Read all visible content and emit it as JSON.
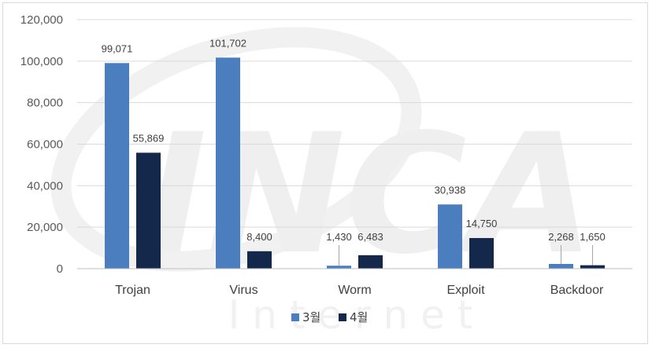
{
  "chart_data": {
    "type": "bar",
    "title": "",
    "xlabel": "",
    "ylabel": "",
    "ylim": [
      0,
      120000
    ],
    "yticks": [
      "0",
      "20,000",
      "40,000",
      "60,000",
      "80,000",
      "100,000",
      "120,000"
    ],
    "ytick_values": [
      0,
      20000,
      40000,
      60000,
      80000,
      100000,
      120000
    ],
    "grid": true,
    "legend_position": "bottom",
    "categories": [
      "Trojan",
      "Virus",
      "Worm",
      "Exploit",
      "Backdoor"
    ],
    "series": [
      {
        "name": "3월",
        "color": "#4a7ebf",
        "values": [
          99071,
          101702,
          1430,
          30938,
          2268
        ],
        "labels": [
          "99,071",
          "101,702",
          "1,430",
          "30,938",
          "2,268"
        ]
      },
      {
        "name": "4월",
        "color": "#14284b",
        "values": [
          55869,
          8400,
          6483,
          14750,
          1650
        ],
        "labels": [
          "55,869",
          "8,400",
          "6,483",
          "14,750",
          "1,650"
        ]
      }
    ],
    "watermark": {
      "logo_text": "INCA",
      "sub_text": "I n t e r n e t"
    }
  }
}
